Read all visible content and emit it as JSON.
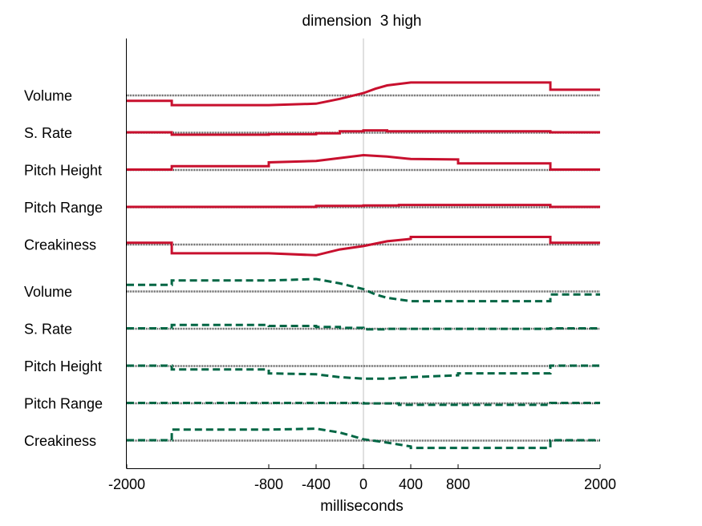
{
  "chart_data": {
    "type": "line",
    "title": "dimension  3 high",
    "xlabel": "milliseconds",
    "ylabel": "",
    "xlim": [
      -2000,
      2000
    ],
    "x_ticks": [
      -2000,
      -800,
      -400,
      0,
      400,
      800,
      2000
    ],
    "x_tick_labels": [
      "-2000",
      "-800",
      "-400",
      "0",
      "400",
      "800",
      "2000"
    ],
    "vertical_reference_line_x": 0,
    "row_unit": "offset from row baseline (row spacing = 1)",
    "colors": {
      "high": "#c8102e",
      "low": "#006644",
      "baseline": "#444444",
      "zero_line": "#c0c0c0",
      "axis": "#000000"
    },
    "groups": [
      {
        "key": "high",
        "style": "solid",
        "rows": [
          {
            "label": "Volume",
            "x": [
              -2000,
              -1620,
              -1620,
              -800,
              -400,
              -200,
              0,
              100,
              200,
              400,
              800,
              1580,
              1580,
              2000
            ],
            "y": [
              -0.12,
              -0.12,
              -0.21,
              -0.21,
              -0.18,
              -0.08,
              0.04,
              0.13,
              0.2,
              0.26,
              0.26,
              0.26,
              0.11,
              0.11
            ]
          },
          {
            "label": "S. Rate",
            "x": [
              -2000,
              -1620,
              -1620,
              -800,
              -800,
              -400,
              -400,
              -200,
              -200,
              0,
              0,
              200,
              200,
              1580,
              1580,
              2000
            ],
            "y": [
              0,
              0,
              -0.05,
              -0.05,
              -0.04,
              -0.04,
              -0.02,
              -0.02,
              0.02,
              0.02,
              0.04,
              0.04,
              0.02,
              0.02,
              0,
              0
            ]
          },
          {
            "label": "Pitch Height",
            "x": [
              -2000,
              -1620,
              -1620,
              -800,
              -800,
              -400,
              -200,
              0,
              200,
              400,
              800,
              800,
              1580,
              1580,
              2000
            ],
            "y": [
              0,
              0,
              0.07,
              0.07,
              0.15,
              0.18,
              0.24,
              0.3,
              0.27,
              0.22,
              0.21,
              0.13,
              0.13,
              0,
              0
            ]
          },
          {
            "label": "Pitch Range",
            "x": [
              -2000,
              -400,
              -400,
              0,
              0,
              300,
              300,
              1580,
              1580,
              2000
            ],
            "y": [
              0,
              0,
              0.02,
              0.02,
              0.03,
              0.03,
              0.04,
              0.04,
              0,
              0
            ]
          },
          {
            "label": "Creakiness",
            "x": [
              -2000,
              -1620,
              -1620,
              -800,
              -400,
              -200,
              0,
              200,
              400,
              400,
              800,
              1580,
              1580,
              2000
            ],
            "y": [
              0.03,
              0.03,
              -0.19,
              -0.19,
              -0.23,
              -0.11,
              -0.04,
              0.06,
              0.11,
              0.15,
              0.15,
              0.15,
              0.03,
              0.03
            ]
          }
        ]
      },
      {
        "key": "low",
        "style": "dashed",
        "rows": [
          {
            "label": "Volume",
            "x": [
              -2000,
              -1620,
              -1620,
              -800,
              -400,
              -200,
              0,
              100,
              200,
              400,
              800,
              1580,
              1580,
              2000
            ],
            "y": [
              0.13,
              0.13,
              0.22,
              0.22,
              0.25,
              0.16,
              0.04,
              -0.07,
              -0.14,
              -0.21,
              -0.21,
              -0.21,
              -0.07,
              -0.07
            ]
          },
          {
            "label": "S. Rate",
            "x": [
              -2000,
              -1620,
              -1620,
              -800,
              -800,
              -400,
              -400,
              -200,
              -200,
              0,
              0,
              200,
              200,
              1580,
              1580,
              2000
            ],
            "y": [
              0,
              0,
              0.07,
              0.07,
              0.05,
              0.05,
              0.03,
              0.03,
              0.01,
              0.01,
              -0.02,
              -0.02,
              -0.01,
              -0.01,
              0,
              0
            ]
          },
          {
            "label": "Pitch Height",
            "x": [
              -2000,
              -1620,
              -1620,
              -800,
              -800,
              -400,
              -200,
              0,
              200,
              400,
              800,
              800,
              1580,
              1580,
              2000
            ],
            "y": [
              0,
              0,
              -0.08,
              -0.08,
              -0.16,
              -0.18,
              -0.24,
              -0.27,
              -0.27,
              -0.24,
              -0.2,
              -0.16,
              -0.16,
              0,
              0
            ]
          },
          {
            "label": "Pitch Range",
            "x": [
              -2000,
              -400,
              -400,
              0,
              0,
              300,
              300,
              1580,
              1580,
              2000
            ],
            "y": [
              0,
              0,
              0,
              0,
              -0.01,
              -0.01,
              -0.04,
              -0.04,
              0,
              0
            ]
          },
          {
            "label": "Creakiness",
            "x": [
              -2000,
              -1620,
              -1620,
              -800,
              -400,
              -200,
              0,
              200,
              400,
              400,
              800,
              1580,
              1580,
              2000
            ],
            "y": [
              0,
              0,
              0.22,
              0.22,
              0.24,
              0.16,
              0.02,
              -0.05,
              -0.13,
              -0.16,
              -0.16,
              -0.16,
              0,
              0
            ]
          }
        ]
      }
    ]
  }
}
